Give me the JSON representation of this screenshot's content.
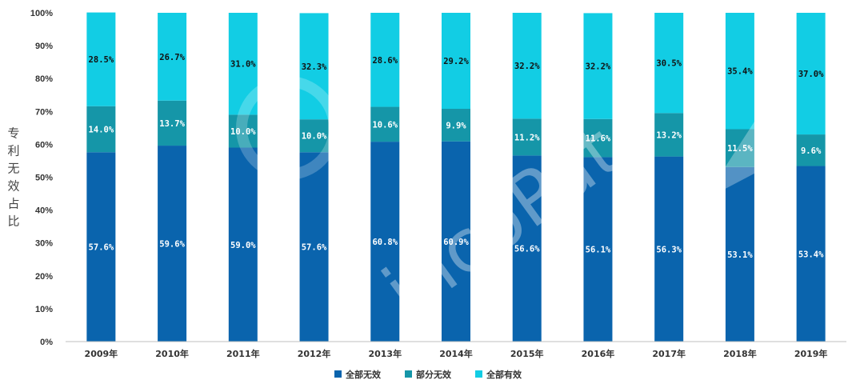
{
  "chart_data": {
    "type": "bar",
    "stacked": true,
    "percent_stacked": true,
    "categories": [
      "2009年",
      "2010年",
      "2011年",
      "2012年",
      "2013年",
      "2014年",
      "2015年",
      "2016年",
      "2017年",
      "2018年",
      "2019年"
    ],
    "series": [
      {
        "name": "全部无效",
        "color": "#0a64ad",
        "values": [
          57.6,
          59.6,
          59.0,
          57.6,
          60.8,
          60.9,
          56.6,
          56.1,
          56.3,
          53.1,
          53.4
        ],
        "labels": [
          "57.6%",
          "59.6%",
          "59.0%",
          "57.6%",
          "60.8%",
          "60.9%",
          "56.6%",
          "56.1%",
          "56.3%",
          "53.1%",
          "53.4%"
        ]
      },
      {
        "name": "部分无效",
        "color": "#1596a8",
        "values": [
          14.0,
          13.7,
          10.0,
          10.0,
          10.6,
          9.9,
          11.2,
          11.6,
          13.2,
          11.5,
          9.6
        ],
        "labels": [
          "14.0%",
          "13.7%",
          "10.0%",
          "10.0%",
          "10.6%",
          "9.9%",
          "11.2%",
          "11.6%",
          "13.2%",
          "11.5%",
          "9.6%"
        ]
      },
      {
        "name": "全部有效",
        "color": "#12cde4",
        "values": [
          28.5,
          26.7,
          31.0,
          32.3,
          28.6,
          29.2,
          32.2,
          32.2,
          30.5,
          35.4,
          37.0
        ],
        "labels": [
          "28.5%",
          "26.7%",
          "31.0%",
          "32.3%",
          "28.6%",
          "29.2%",
          "32.2%",
          "32.2%",
          "30.5%",
          "35.4%",
          "37.0%"
        ]
      }
    ],
    "ylabel": "专利无效占比",
    "y_ticks": [
      "0%",
      "10%",
      "20%",
      "30%",
      "40%",
      "50%",
      "60%",
      "70%",
      "80%",
      "90%",
      "100%"
    ],
    "ylim": [
      0,
      100
    ],
    "grid": false,
    "legend": "bottom",
    "watermark": "incoPat"
  }
}
